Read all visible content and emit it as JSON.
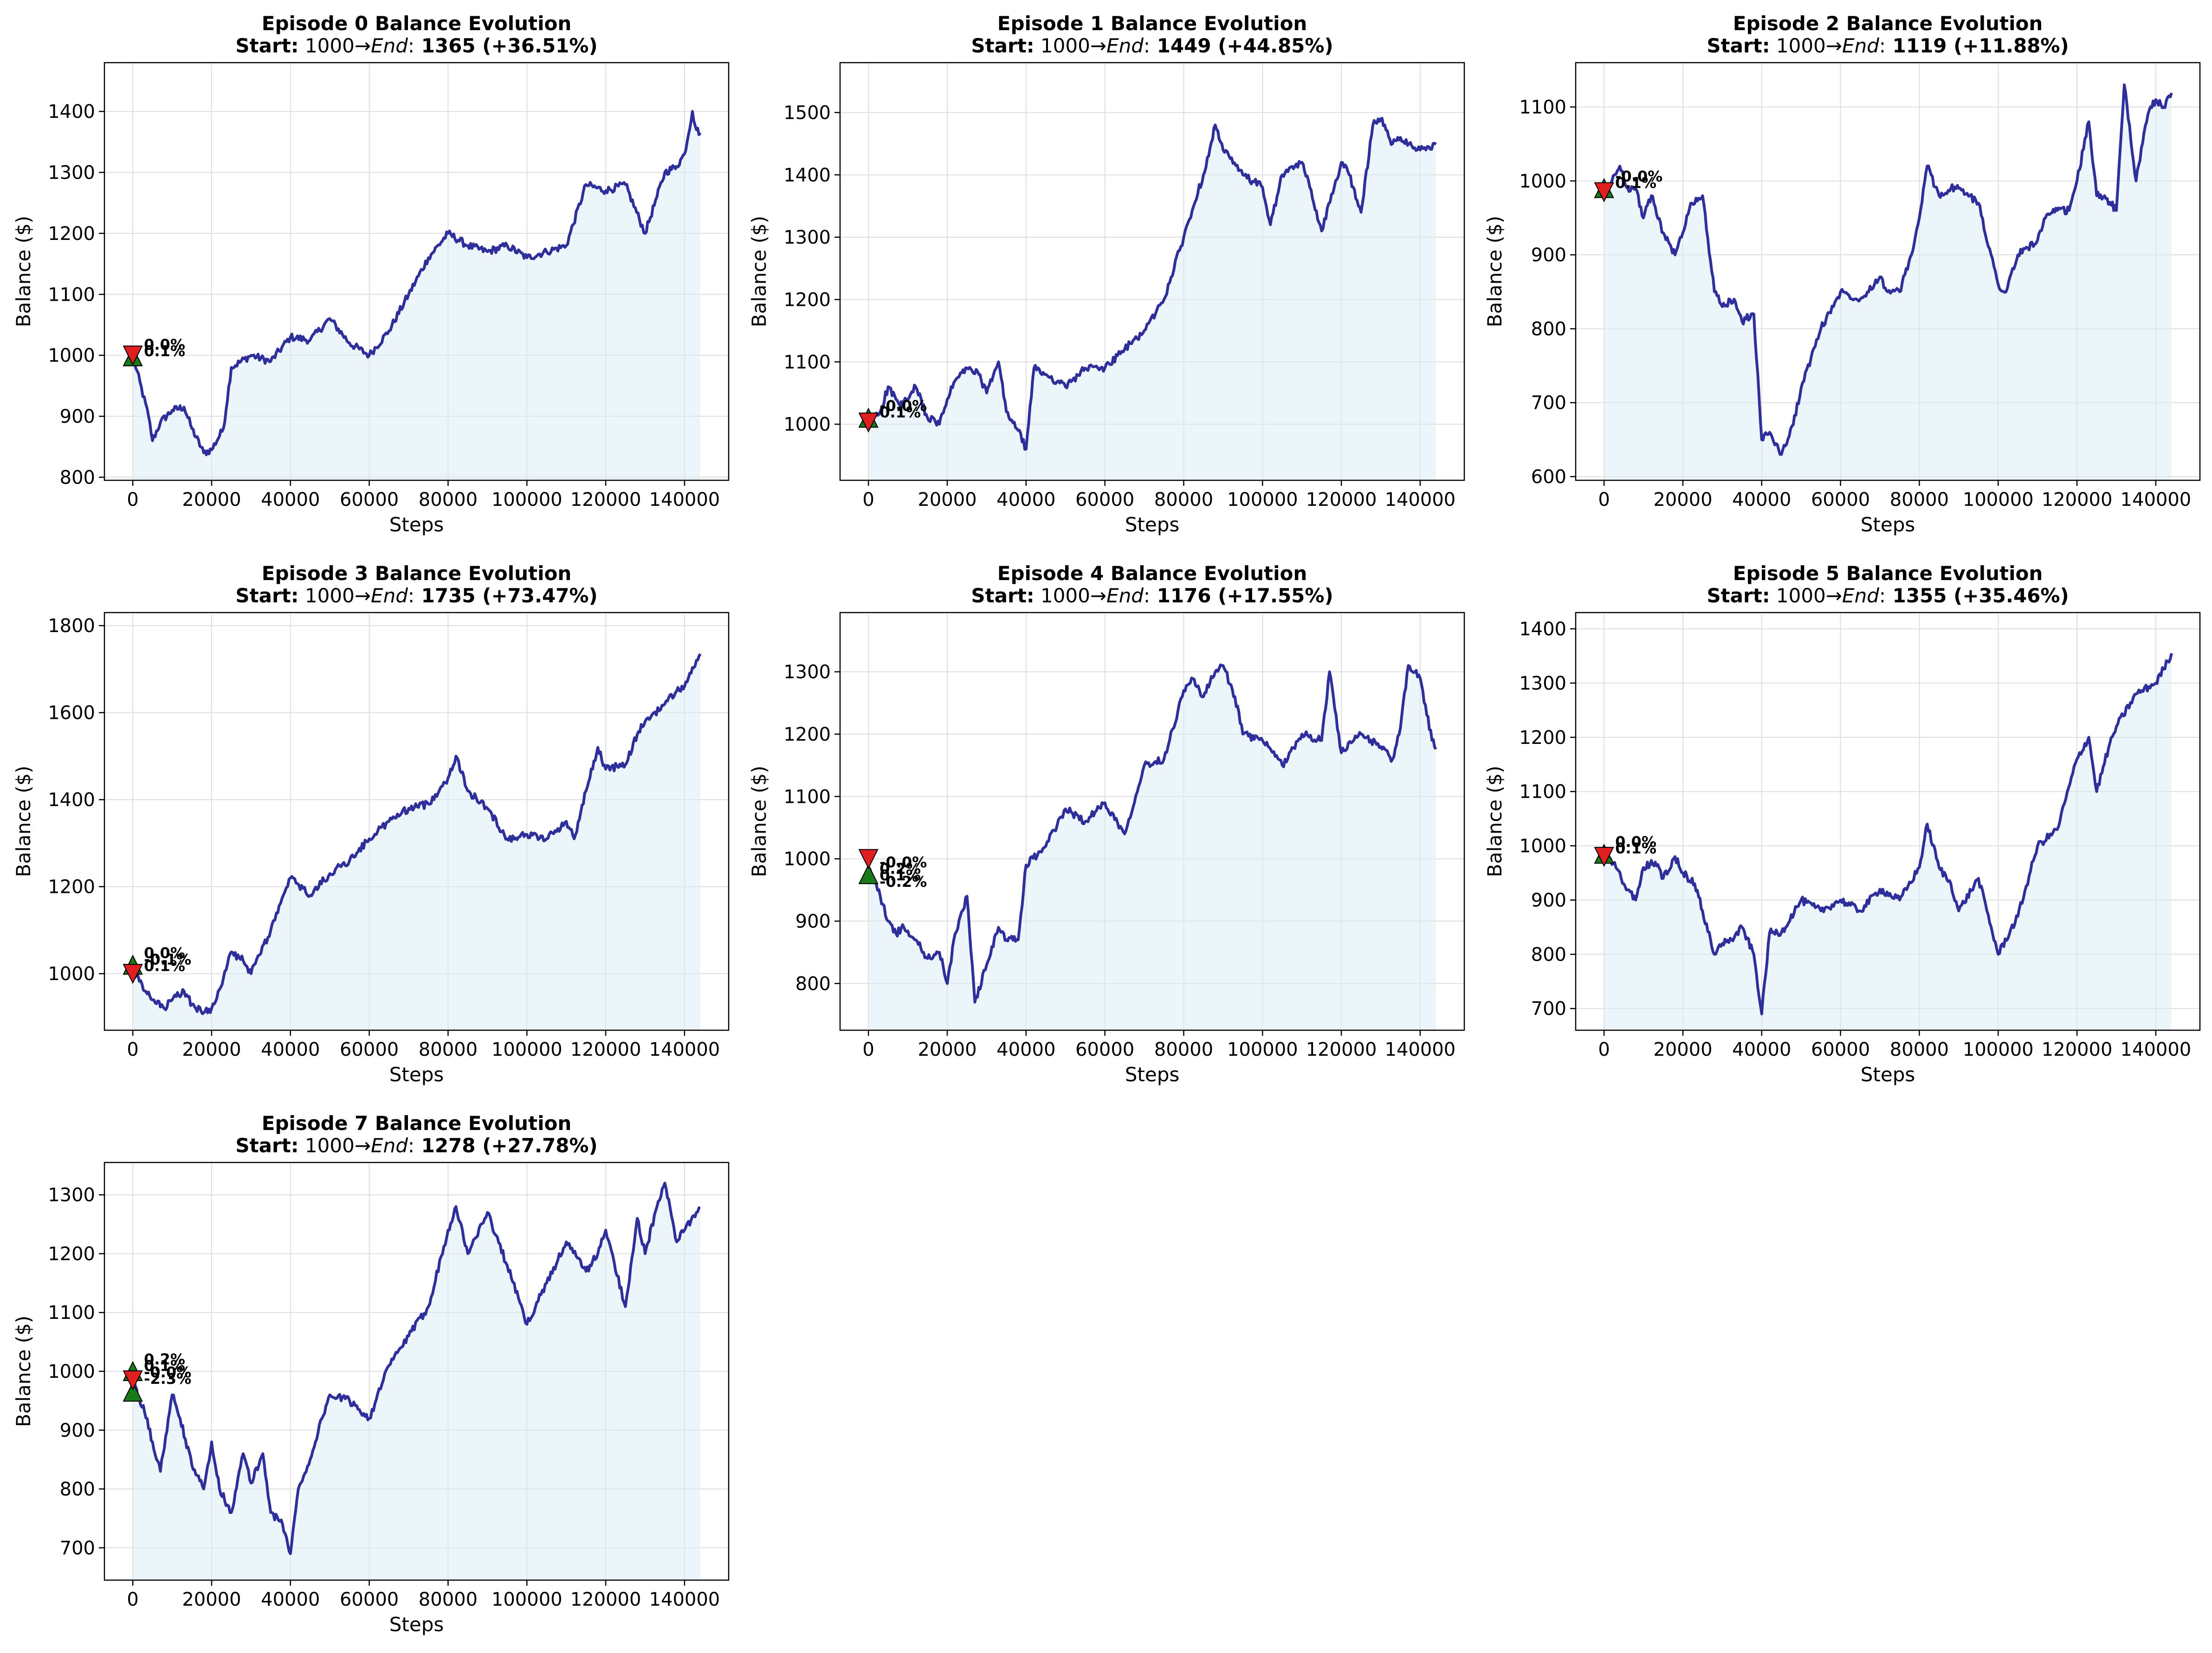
{
  "figure": {
    "colors": {
      "line": "#2e2f9a",
      "fill": "#d9eef5",
      "grid": "#dedede",
      "buy_marker": "#1a7a1a",
      "sell_marker": "#e02020"
    }
  },
  "chart_data": [
    {
      "type": "line",
      "title": "Episode 0 Balance Evolution",
      "subtitle": {
        "start_label": "Start:",
        "start_value": "1000",
        "arrow": "→",
        "end_label": "End",
        "colon": ":",
        "end_value": "1365 (+36.51%)"
      },
      "xlabel": "Steps",
      "ylabel": "Balance ($)",
      "xlim": [
        -7200,
        151200
      ],
      "ylim": [
        795,
        1480
      ],
      "xticks": [
        0,
        20000,
        40000,
        60000,
        80000,
        100000,
        120000,
        140000
      ],
      "yticks": [
        800,
        900,
        1000,
        1100,
        1200,
        1300,
        1400
      ],
      "grid": true,
      "x": [
        0,
        4000,
        5000,
        7000,
        10000,
        13000,
        15000,
        18000,
        20000,
        23000,
        25000,
        30000,
        35000,
        40000,
        45000,
        50000,
        55000,
        60000,
        65000,
        70000,
        75000,
        80000,
        85000,
        90000,
        95000,
        100000,
        105000,
        110000,
        115000,
        120000,
        125000,
        130000,
        133000,
        135000,
        138000,
        140000,
        142000,
        143000,
        144000
      ],
      "y": [
        1000,
        900,
        860,
        890,
        910,
        915,
        880,
        840,
        845,
        880,
        980,
        1000,
        990,
        1030,
        1025,
        1060,
        1020,
        1000,
        1040,
        1100,
        1160,
        1200,
        1180,
        1170,
        1180,
        1160,
        1170,
        1180,
        1280,
        1270,
        1280,
        1200,
        1260,
        1300,
        1310,
        1330,
        1400,
        1370,
        1365
      ],
      "markers": [
        {
          "type": "buy",
          "x": 0,
          "y": 998
        },
        {
          "type": "sell",
          "x": 0,
          "y": 1000
        }
      ],
      "annotations": [
        "0.0%",
        "0.1%"
      ]
    },
    {
      "type": "line",
      "title": "Episode 1 Balance Evolution",
      "subtitle": {
        "start_label": "Start:",
        "start_value": "1000",
        "arrow": "→",
        "end_label": "End",
        "colon": ":",
        "end_value": "1449 (+44.85%)"
      },
      "xlabel": "Steps",
      "ylabel": "Balance ($)",
      "xlim": [
        -7200,
        151200
      ],
      "ylim": [
        910,
        1580
      ],
      "xticks": [
        0,
        20000,
        40000,
        60000,
        80000,
        100000,
        120000,
        140000
      ],
      "yticks": [
        1000,
        1100,
        1200,
        1300,
        1400,
        1500
      ],
      "grid": true,
      "x": [
        0,
        3000,
        5000,
        8000,
        10000,
        12000,
        15000,
        18000,
        20000,
        22000,
        25000,
        28000,
        30000,
        33000,
        35000,
        38000,
        40000,
        42000,
        45000,
        50000,
        55000,
        60000,
        65000,
        70000,
        75000,
        80000,
        85000,
        88000,
        90000,
        95000,
        100000,
        102000,
        105000,
        110000,
        112000,
        115000,
        120000,
        122000,
        125000,
        128000,
        130000,
        133000,
        135000,
        140000,
        144000
      ],
      "y": [
        1005,
        1020,
        1060,
        1030,
        1040,
        1060,
        1010,
        1000,
        1040,
        1070,
        1090,
        1080,
        1050,
        1100,
        1020,
        990,
        960,
        1090,
        1080,
        1060,
        1090,
        1090,
        1120,
        1150,
        1200,
        1300,
        1400,
        1480,
        1440,
        1400,
        1380,
        1320,
        1400,
        1420,
        1380,
        1310,
        1420,
        1400,
        1340,
        1480,
        1490,
        1450,
        1460,
        1440,
        1449
      ],
      "markers": [
        {
          "type": "buy",
          "x": 0,
          "y": 1010
        },
        {
          "type": "sell",
          "x": 0,
          "y": 1003
        }
      ],
      "annotations": [
        "-0.0%",
        "0.1%"
      ]
    },
    {
      "type": "line",
      "title": "Episode 2 Balance Evolution",
      "subtitle": {
        "start_label": "Start:",
        "start_value": "1000",
        "arrow": "→",
        "end_label": "End",
        "colon": ":",
        "end_value": "1119 (+11.88%)"
      },
      "xlabel": "Steps",
      "ylabel": "Balance ($)",
      "xlim": [
        -7200,
        151200
      ],
      "ylim": [
        595,
        1160
      ],
      "xticks": [
        0,
        20000,
        40000,
        60000,
        80000,
        100000,
        120000,
        140000
      ],
      "yticks": [
        600,
        700,
        800,
        900,
        1000,
        1100
      ],
      "grid": true,
      "x": [
        0,
        2000,
        4000,
        6000,
        8000,
        10000,
        12000,
        15000,
        18000,
        20000,
        22000,
        25000,
        28000,
        30000,
        33000,
        35000,
        38000,
        40000,
        42000,
        45000,
        48000,
        50000,
        55000,
        60000,
        65000,
        70000,
        72000,
        75000,
        78000,
        80000,
        82000,
        85000,
        88000,
        90000,
        95000,
        100000,
        102000,
        105000,
        110000,
        112000,
        115000,
        118000,
        120000,
        123000,
        125000,
        127000,
        130000,
        132000,
        135000,
        138000,
        140000,
        142000,
        144000
      ],
      "y": [
        990,
        1000,
        1020,
        990,
        990,
        950,
        980,
        930,
        900,
        930,
        970,
        980,
        850,
        830,
        840,
        810,
        820,
        650,
        660,
        630,
        670,
        720,
        800,
        850,
        840,
        870,
        850,
        850,
        900,
        950,
        1020,
        980,
        990,
        990,
        970,
        860,
        850,
        900,
        920,
        950,
        960,
        960,
        1000,
        1080,
        980,
        980,
        960,
        1130,
        1000,
        1090,
        1110,
        1100,
        1119
      ],
      "markers": [
        {
          "type": "buy",
          "x": 0,
          "y": 990
        },
        {
          "type": "sell",
          "x": 0,
          "y": 985
        }
      ],
      "annotations": [
        "-0.0%",
        "0.1%"
      ]
    },
    {
      "type": "line",
      "title": "Episode 3 Balance Evolution",
      "subtitle": {
        "start_label": "Start:",
        "start_value": "1000",
        "arrow": "→",
        "end_label": "End",
        "colon": ":",
        "end_value": "1735 (+73.47%)"
      },
      "xlabel": "Steps",
      "ylabel": "Balance ($)",
      "xlim": [
        -7200,
        151200
      ],
      "ylim": [
        870,
        1830
      ],
      "xticks": [
        0,
        20000,
        40000,
        60000,
        80000,
        100000,
        120000,
        140000
      ],
      "yticks": [
        1000,
        1200,
        1400,
        1600,
        1800
      ],
      "grid": true,
      "x": [
        0,
        3000,
        5000,
        8000,
        10000,
        13000,
        15000,
        18000,
        20000,
        23000,
        25000,
        28000,
        30000,
        35000,
        40000,
        45000,
        50000,
        55000,
        60000,
        65000,
        70000,
        75000,
        80000,
        82000,
        85000,
        90000,
        95000,
        100000,
        105000,
        110000,
        112000,
        115000,
        118000,
        120000,
        125000,
        128000,
        130000,
        135000,
        138000,
        140000,
        143000,
        144000
      ],
      "y": [
        1010,
        960,
        940,
        920,
        940,
        960,
        930,
        910,
        920,
        990,
        1050,
        1030,
        1000,
        1100,
        1220,
        1180,
        1230,
        1260,
        1310,
        1350,
        1380,
        1390,
        1450,
        1500,
        1420,
        1380,
        1310,
        1320,
        1310,
        1350,
        1310,
        1420,
        1520,
        1470,
        1480,
        1550,
        1580,
        1620,
        1650,
        1660,
        1720,
        1735
      ],
      "markers": [
        {
          "type": "buy",
          "x": 0,
          "y": 1020
        },
        {
          "type": "sell",
          "x": 0,
          "y": 1000
        }
      ],
      "annotations": [
        "0.0%",
        "-0.1%",
        "0.1%"
      ]
    },
    {
      "type": "line",
      "title": "Episode 4 Balance Evolution",
      "subtitle": {
        "start_label": "Start:",
        "start_value": "1000",
        "arrow": "→",
        "end_label": "End",
        "colon": ":",
        "end_value": "1176 (+17.55%)"
      },
      "xlabel": "Steps",
      "ylabel": "Balance ($)",
      "xlim": [
        -7200,
        151200
      ],
      "ylim": [
        725,
        1395
      ],
      "xticks": [
        0,
        20000,
        40000,
        60000,
        80000,
        100000,
        120000,
        140000
      ],
      "yticks": [
        800,
        900,
        1000,
        1100,
        1200,
        1300
      ],
      "grid": true,
      "x": [
        0,
        3000,
        5000,
        7000,
        9000,
        12000,
        15000,
        18000,
        20000,
        22000,
        25000,
        27000,
        30000,
        33000,
        35000,
        38000,
        40000,
        45000,
        50000,
        55000,
        60000,
        65000,
        70000,
        75000,
        80000,
        82000,
        85000,
        88000,
        90000,
        93000,
        95000,
        100000,
        105000,
        110000,
        115000,
        117000,
        120000,
        125000,
        130000,
        133000,
        135000,
        137000,
        140000,
        143000,
        144000
      ],
      "y": [
        985,
        940,
        900,
        880,
        890,
        870,
        840,
        850,
        800,
        880,
        940,
        770,
        830,
        890,
        870,
        870,
        990,
        1020,
        1080,
        1060,
        1090,
        1040,
        1150,
        1160,
        1270,
        1290,
        1260,
        1300,
        1310,
        1260,
        1200,
        1190,
        1150,
        1200,
        1190,
        1300,
        1170,
        1200,
        1180,
        1160,
        1210,
        1310,
        1290,
        1190,
        1176
      ],
      "markers": [
        {
          "type": "buy",
          "x": 0,
          "y": 975
        },
        {
          "type": "sell",
          "x": 0,
          "y": 1000
        }
      ],
      "annotations": [
        "-0.0%",
        "0.2%",
        "0.1%",
        "-0.2%"
      ]
    },
    {
      "type": "line",
      "title": "Episode 5 Balance Evolution",
      "subtitle": {
        "start_label": "Start:",
        "start_value": "1000",
        "arrow": "→",
        "end_label": "End",
        "colon": ":",
        "end_value": "1355 (+35.46%)"
      },
      "xlabel": "Steps",
      "ylabel": "Balance ($)",
      "xlim": [
        -7200,
        151200
      ],
      "ylim": [
        660,
        1430
      ],
      "xticks": [
        0,
        20000,
        40000,
        60000,
        80000,
        100000,
        120000,
        140000
      ],
      "yticks": [
        700,
        800,
        900,
        1000,
        1100,
        1200,
        1300,
        1400
      ],
      "grid": true,
      "x": [
        0,
        3000,
        5000,
        8000,
        10000,
        13000,
        15000,
        18000,
        20000,
        23000,
        25000,
        28000,
        30000,
        33000,
        35000,
        38000,
        40000,
        42000,
        45000,
        50000,
        55000,
        60000,
        65000,
        70000,
        75000,
        80000,
        82000,
        85000,
        88000,
        90000,
        95000,
        100000,
        105000,
        110000,
        115000,
        120000,
        123000,
        125000,
        128000,
        130000,
        135000,
        140000,
        143000,
        144000
      ],
      "y": [
        990,
        960,
        930,
        900,
        960,
        970,
        940,
        980,
        950,
        930,
        880,
        800,
        820,
        830,
        850,
        800,
        690,
        840,
        840,
        900,
        880,
        900,
        880,
        920,
        900,
        960,
        1040,
        960,
        930,
        880,
        940,
        800,
        870,
        1000,
        1030,
        1160,
        1200,
        1100,
        1180,
        1220,
        1280,
        1300,
        1340,
        1355
      ],
      "markers": [
        {
          "type": "buy",
          "x": 0,
          "y": 985
        },
        {
          "type": "sell",
          "x": 0,
          "y": 980
        }
      ],
      "annotations": [
        "0.0%",
        "0.1%"
      ]
    },
    {
      "type": "line",
      "title": "Episode 7 Balance Evolution",
      "subtitle": {
        "start_label": "Start:",
        "start_value": "1000",
        "arrow": "→",
        "end_label": "End",
        "colon": ":",
        "end_value": "1278 (+27.78%)"
      },
      "xlabel": "Steps",
      "ylabel": "Balance ($)",
      "xlim": [
        -7200,
        151200
      ],
      "ylim": [
        645,
        1355
      ],
      "xticks": [
        0,
        20000,
        40000,
        60000,
        80000,
        100000,
        120000,
        140000
      ],
      "yticks": [
        700,
        800,
        900,
        1000,
        1100,
        1200,
        1300
      ],
      "grid": true,
      "x": [
        0,
        3000,
        5000,
        7000,
        10000,
        12000,
        15000,
        18000,
        20000,
        22000,
        25000,
        28000,
        30000,
        33000,
        35000,
        38000,
        40000,
        42000,
        45000,
        48000,
        50000,
        55000,
        60000,
        65000,
        70000,
        75000,
        80000,
        82000,
        85000,
        90000,
        95000,
        100000,
        105000,
        110000,
        115000,
        118000,
        120000,
        125000,
        128000,
        130000,
        133000,
        135000,
        138000,
        140000,
        143000,
        144000
      ],
      "y": [
        980,
        930,
        880,
        830,
        960,
        920,
        840,
        800,
        880,
        800,
        760,
        860,
        810,
        860,
        760,
        740,
        690,
        800,
        850,
        920,
        960,
        950,
        920,
        1010,
        1060,
        1110,
        1240,
        1280,
        1200,
        1270,
        1180,
        1080,
        1150,
        1220,
        1170,
        1200,
        1240,
        1110,
        1260,
        1200,
        1280,
        1320,
        1220,
        1240,
        1270,
        1278
      ],
      "markers": [
        {
          "type": "buy",
          "x": 0,
          "y": 1000
        },
        {
          "type": "buy",
          "x": 0,
          "y": 965
        },
        {
          "type": "sell",
          "x": 0,
          "y": 985
        }
      ],
      "annotations": [
        "0.2%",
        "0.1%",
        "-0.0%",
        "-2.3%"
      ]
    }
  ]
}
